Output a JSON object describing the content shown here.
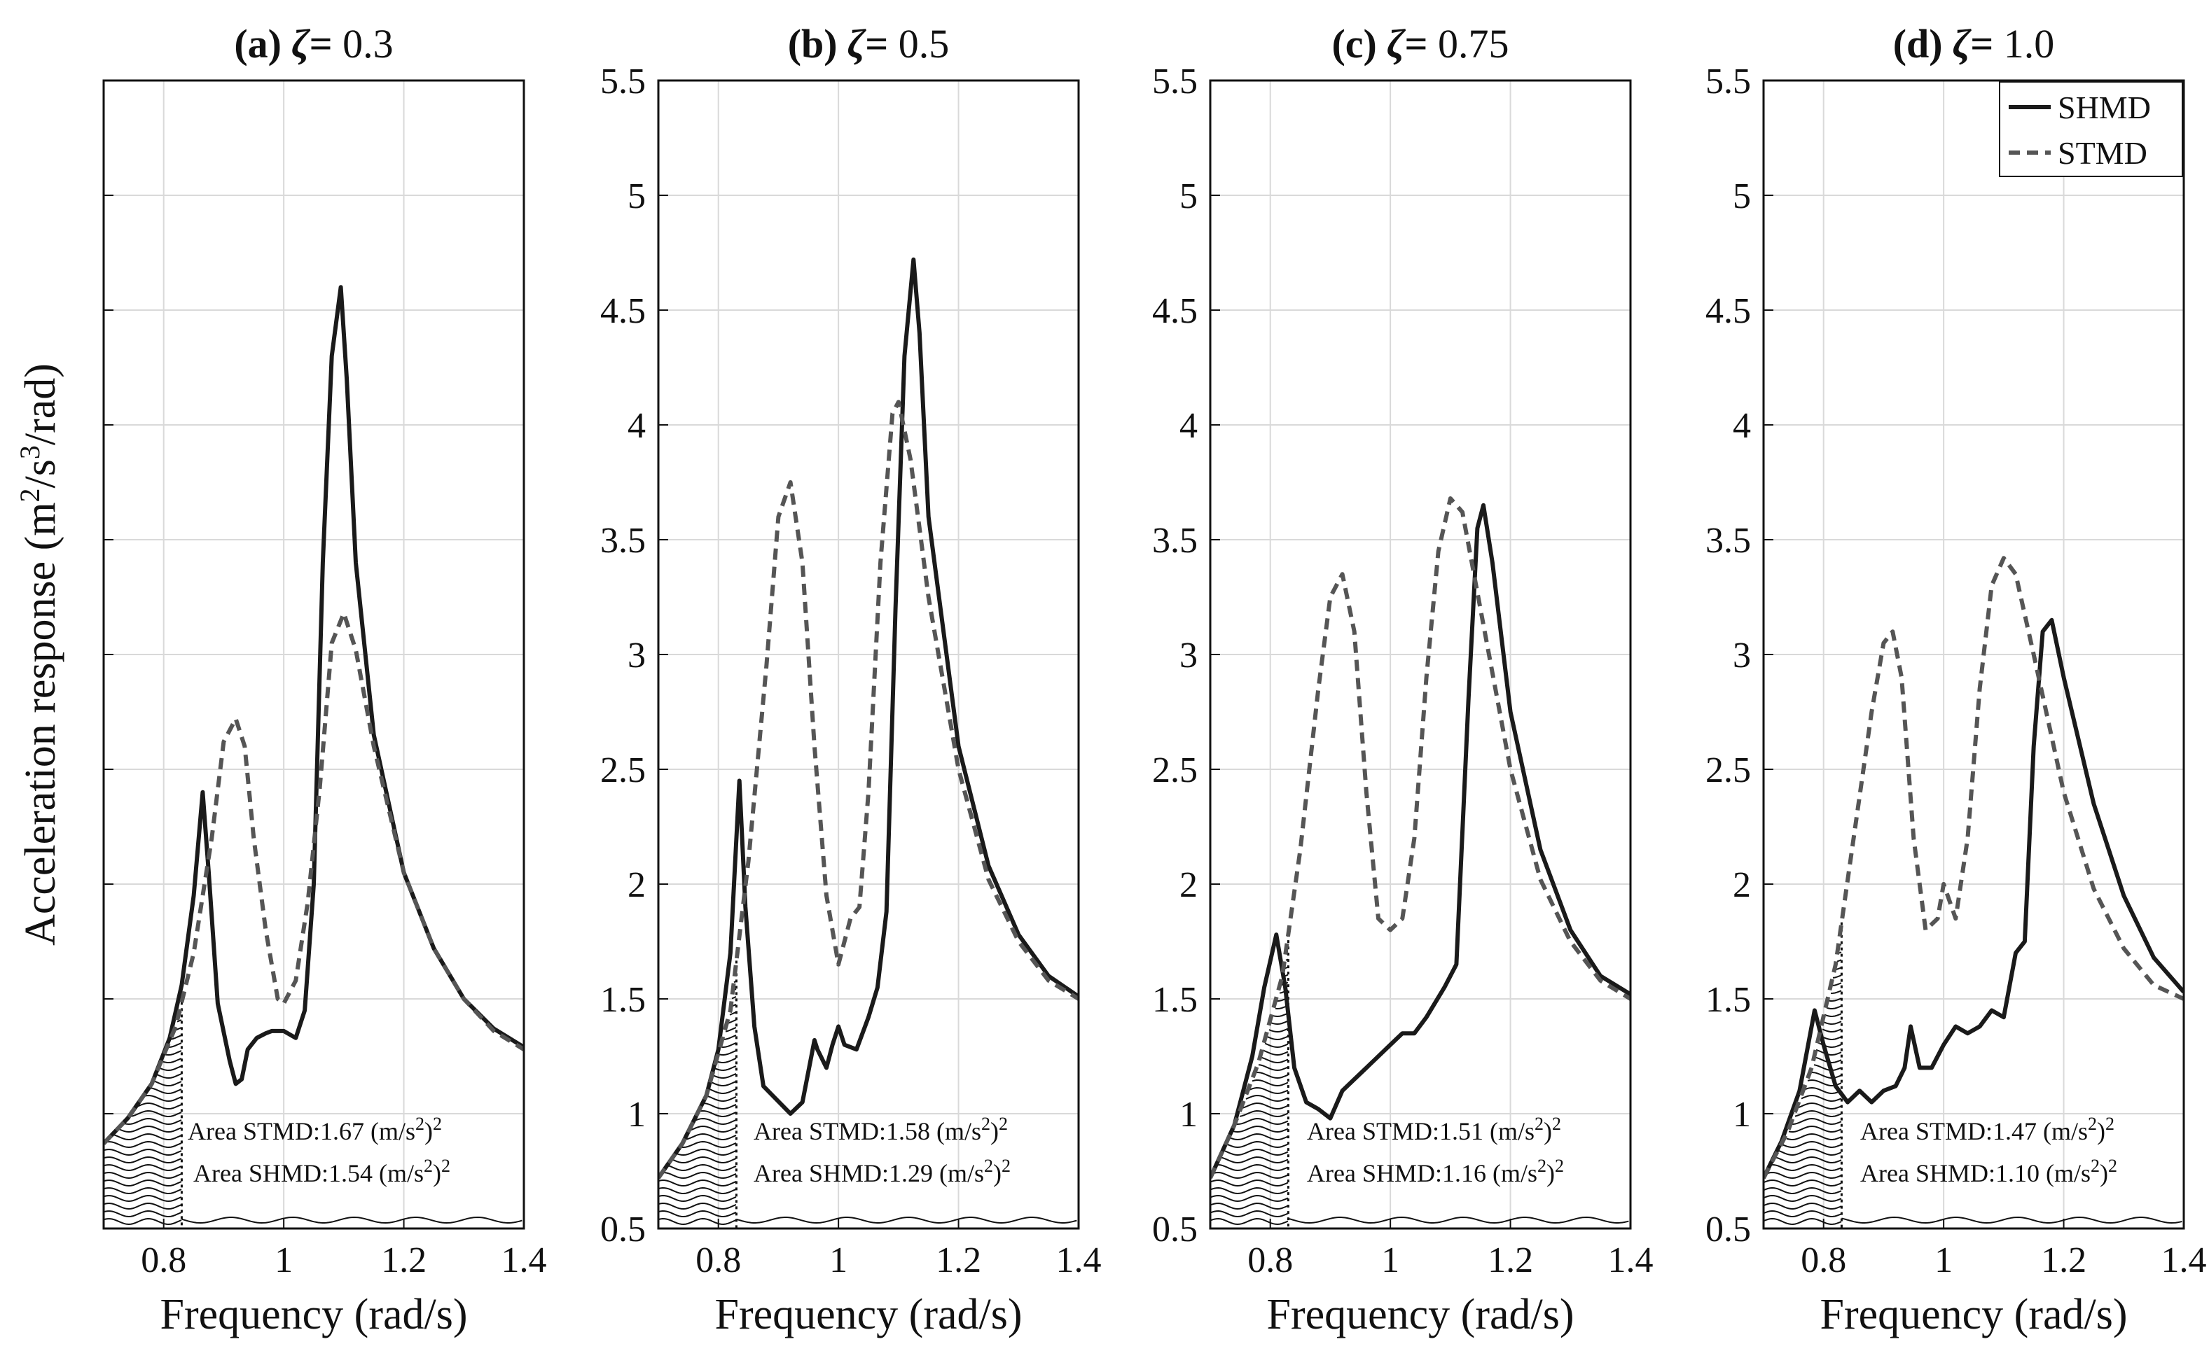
{
  "figure": {
    "ylabel_main": "Acceleration response (m",
    "ylabel_sup1": "2",
    "ylabel_mid": "/s",
    "ylabel_sup2": "3",
    "ylabel_end": "/rad)",
    "legend": {
      "solid": "SHMD",
      "dashed": "STMD"
    },
    "colors": {
      "shmd": "#1a1a1a",
      "stmd": "#555555",
      "grid": "#d9d9d9"
    }
  },
  "chart_data": [
    {
      "type": "line",
      "title_prefix": "(a)",
      "zeta": "0.3",
      "xlabel": "Frequency (rad/s)",
      "xlim": [
        0.7,
        1.4
      ],
      "ylim": [
        0.5,
        5.5
      ],
      "xticks": [
        "0.8",
        "1",
        "1.2",
        "1.4"
      ],
      "yticks": [],
      "hatch_limit": 0.83,
      "area_stmd_label": "Area STMD:1.67 (m/s",
      "area_shmd_label": "Area SHMD:1.54 (m/s",
      "area_sup": "2",
      "area_end": ")",
      "series": [
        {
          "name": "SHMD",
          "x": [
            0.7,
            0.74,
            0.78,
            0.81,
            0.83,
            0.85,
            0.865,
            0.875,
            0.89,
            0.91,
            0.92,
            0.93,
            0.94,
            0.955,
            0.97,
            0.98,
            1.0,
            1.02,
            1.035,
            1.05,
            1.065,
            1.08,
            1.095,
            1.105,
            1.12,
            1.15,
            1.2,
            1.25,
            1.3,
            1.35,
            1.4
          ],
          "y": [
            0.87,
            0.98,
            1.13,
            1.33,
            1.56,
            1.95,
            2.4,
            2.05,
            1.48,
            1.23,
            1.13,
            1.15,
            1.28,
            1.33,
            1.35,
            1.36,
            1.36,
            1.33,
            1.45,
            2.0,
            3.4,
            4.3,
            4.6,
            4.2,
            3.4,
            2.65,
            2.05,
            1.72,
            1.5,
            1.37,
            1.29
          ]
        },
        {
          "name": "STMD",
          "x": [
            0.7,
            0.74,
            0.78,
            0.82,
            0.85,
            0.88,
            0.9,
            0.92,
            0.935,
            0.95,
            0.97,
            0.99,
            1.0,
            1.02,
            1.04,
            1.06,
            1.08,
            1.1,
            1.12,
            1.15,
            1.2,
            1.25,
            1.3,
            1.35,
            1.4
          ],
          "y": [
            0.87,
            0.98,
            1.13,
            1.38,
            1.7,
            2.2,
            2.62,
            2.72,
            2.6,
            2.2,
            1.8,
            1.5,
            1.48,
            1.58,
            1.92,
            2.42,
            3.05,
            3.18,
            3.02,
            2.6,
            2.05,
            1.72,
            1.5,
            1.36,
            1.28
          ]
        }
      ]
    },
    {
      "type": "line",
      "title_prefix": "(b)",
      "zeta": "0.5",
      "xlabel": "Frequency (rad/s)",
      "xlim": [
        0.7,
        1.4
      ],
      "ylim": [
        0.5,
        5.5
      ],
      "xticks": [
        "0.8",
        "1",
        "1.2",
        "1.4"
      ],
      "yticks": [
        "0.5",
        "1",
        "1.5",
        "2",
        "2.5",
        "3",
        "3.5",
        "4",
        "4.5",
        "5",
        "5.5"
      ],
      "hatch_limit": 0.83,
      "area_stmd_label": "Area STMD:1.58 (m/s",
      "area_shmd_label": "Area SHMD:1.29 (m/s",
      "area_sup": "2",
      "area_end": ")",
      "series": [
        {
          "name": "SHMD",
          "x": [
            0.7,
            0.74,
            0.78,
            0.8,
            0.82,
            0.835,
            0.845,
            0.86,
            0.875,
            0.89,
            0.92,
            0.94,
            0.96,
            0.965,
            0.98,
            0.99,
            1.0,
            1.01,
            1.03,
            1.05,
            1.065,
            1.08,
            1.095,
            1.11,
            1.125,
            1.135,
            1.15,
            1.2,
            1.25,
            1.3,
            1.35,
            1.4
          ],
          "y": [
            0.72,
            0.87,
            1.08,
            1.28,
            1.7,
            2.45,
            1.9,
            1.38,
            1.12,
            1.08,
            1.0,
            1.05,
            1.32,
            1.28,
            1.2,
            1.3,
            1.38,
            1.3,
            1.28,
            1.42,
            1.55,
            1.88,
            3.2,
            4.3,
            4.72,
            4.4,
            3.6,
            2.6,
            2.08,
            1.78,
            1.6,
            1.51
          ]
        },
        {
          "name": "STMD",
          "x": [
            0.7,
            0.74,
            0.78,
            0.82,
            0.85,
            0.88,
            0.9,
            0.92,
            0.94,
            0.96,
            0.98,
            1.0,
            1.02,
            1.035,
            1.05,
            1.07,
            1.09,
            1.1,
            1.12,
            1.15,
            1.2,
            1.25,
            1.3,
            1.35,
            1.4
          ],
          "y": [
            0.72,
            0.87,
            1.08,
            1.45,
            2.1,
            2.95,
            3.6,
            3.75,
            3.4,
            2.6,
            1.95,
            1.65,
            1.85,
            1.9,
            2.4,
            3.4,
            4.05,
            4.1,
            3.85,
            3.25,
            2.5,
            2.02,
            1.75,
            1.58,
            1.5
          ]
        }
      ]
    },
    {
      "type": "line",
      "title_prefix": "(c)",
      "zeta": "0.75",
      "xlabel": "Frequency (rad/s)",
      "xlim": [
        0.7,
        1.4
      ],
      "ylim": [
        0.5,
        5.5
      ],
      "xticks": [
        "0.8",
        "1",
        "1.2",
        "1.4"
      ],
      "yticks": [
        "0.5",
        "1",
        "1.5",
        "2",
        "2.5",
        "3",
        "3.5",
        "4",
        "4.5",
        "5",
        "5.5"
      ],
      "hatch_limit": 0.83,
      "area_stmd_label": "Area STMD:1.51 (m/s",
      "area_shmd_label": "Area SHMD:1.16 (m/s",
      "area_sup": "2",
      "area_end": ")",
      "series": [
        {
          "name": "SHMD",
          "x": [
            0.7,
            0.74,
            0.77,
            0.79,
            0.81,
            0.825,
            0.84,
            0.86,
            0.88,
            0.9,
            0.92,
            0.94,
            0.96,
            0.98,
            1.0,
            1.02,
            1.04,
            1.06,
            1.09,
            1.11,
            1.13,
            1.145,
            1.155,
            1.17,
            1.2,
            1.25,
            1.3,
            1.35,
            1.4
          ],
          "y": [
            0.72,
            0.95,
            1.25,
            1.55,
            1.78,
            1.55,
            1.2,
            1.05,
            1.02,
            0.98,
            1.1,
            1.15,
            1.2,
            1.25,
            1.3,
            1.35,
            1.35,
            1.42,
            1.55,
            1.65,
            2.8,
            3.55,
            3.65,
            3.4,
            2.75,
            2.15,
            1.8,
            1.6,
            1.52
          ]
        },
        {
          "name": "STMD",
          "x": [
            0.7,
            0.74,
            0.78,
            0.82,
            0.85,
            0.88,
            0.9,
            0.92,
            0.94,
            0.96,
            0.98,
            1.0,
            1.02,
            1.04,
            1.06,
            1.08,
            1.1,
            1.12,
            1.15,
            1.2,
            1.25,
            1.3,
            1.35,
            1.4
          ],
          "y": [
            0.72,
            0.95,
            1.22,
            1.6,
            2.15,
            2.85,
            3.25,
            3.35,
            3.1,
            2.4,
            1.85,
            1.8,
            1.85,
            2.2,
            2.9,
            3.45,
            3.68,
            3.62,
            3.2,
            2.5,
            2.02,
            1.75,
            1.58,
            1.5
          ]
        }
      ]
    },
    {
      "type": "line",
      "title_prefix": "(d)",
      "zeta": "1.0",
      "xlabel": "Frequency (rad/s)",
      "xlim": [
        0.7,
        1.4
      ],
      "ylim": [
        0.5,
        5.5
      ],
      "xticks": [
        "0.8",
        "1",
        "1.2",
        "1.4"
      ],
      "yticks": [
        "0.5",
        "1",
        "1.5",
        "2",
        "2.5",
        "3",
        "3.5",
        "4",
        "4.5",
        "5",
        "5.5"
      ],
      "hatch_limit": 0.83,
      "area_stmd_label": "Area STMD:1.47 (m/s",
      "area_shmd_label": "Area SHMD:1.10 (m/s",
      "area_sup": "2",
      "area_end": ")",
      "series": [
        {
          "name": "SHMD",
          "x": [
            0.7,
            0.73,
            0.76,
            0.785,
            0.8,
            0.82,
            0.84,
            0.86,
            0.88,
            0.9,
            0.92,
            0.935,
            0.945,
            0.96,
            0.98,
            1.0,
            1.02,
            1.04,
            1.06,
            1.08,
            1.1,
            1.12,
            1.135,
            1.15,
            1.165,
            1.18,
            1.2,
            1.25,
            1.3,
            1.35,
            1.4
          ],
          "y": [
            0.72,
            0.88,
            1.1,
            1.45,
            1.3,
            1.12,
            1.05,
            1.1,
            1.05,
            1.1,
            1.12,
            1.2,
            1.38,
            1.2,
            1.2,
            1.3,
            1.38,
            1.35,
            1.38,
            1.45,
            1.42,
            1.7,
            1.75,
            2.6,
            3.1,
            3.15,
            2.9,
            2.35,
            1.95,
            1.68,
            1.53
          ]
        },
        {
          "name": "STMD",
          "x": [
            0.7,
            0.74,
            0.78,
            0.82,
            0.85,
            0.88,
            0.9,
            0.915,
            0.93,
            0.95,
            0.97,
            0.99,
            1.0,
            1.02,
            1.04,
            1.06,
            1.08,
            1.1,
            1.12,
            1.15,
            1.2,
            1.25,
            1.3,
            1.35,
            1.4
          ],
          "y": [
            0.72,
            0.92,
            1.2,
            1.65,
            2.2,
            2.75,
            3.05,
            3.1,
            2.9,
            2.2,
            1.8,
            1.85,
            2.0,
            1.85,
            2.2,
            2.85,
            3.3,
            3.42,
            3.35,
            3.0,
            2.4,
            1.98,
            1.72,
            1.56,
            1.5
          ]
        }
      ]
    }
  ]
}
